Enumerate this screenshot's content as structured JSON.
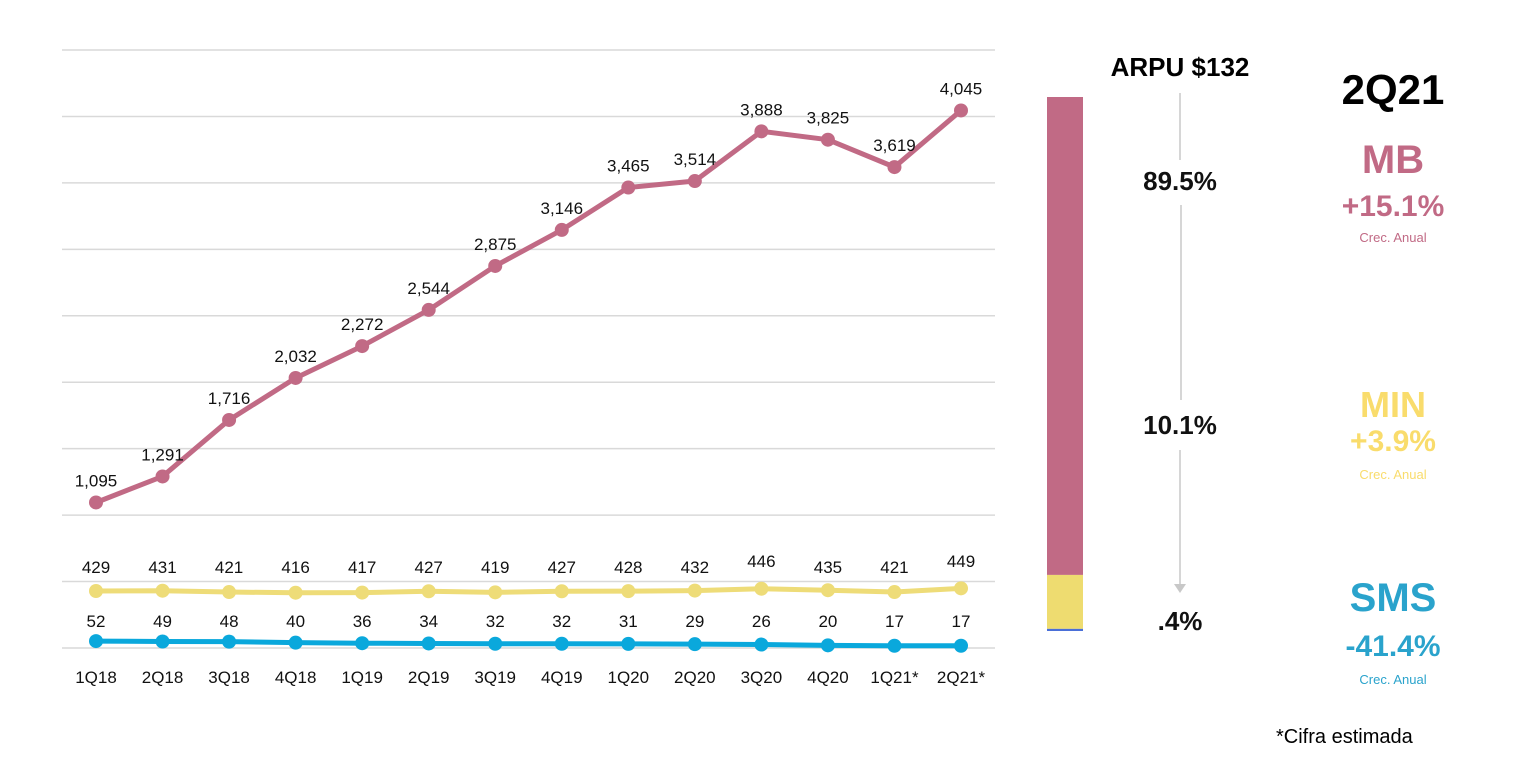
{
  "chart_data": {
    "type": "line",
    "categories": [
      "1Q18",
      "2Q18",
      "3Q18",
      "4Q18",
      "1Q19",
      "2Q19",
      "3Q19",
      "4Q19",
      "1Q20",
      "2Q20",
      "3Q20",
      "4Q20",
      "1Q21*",
      "2Q21*"
    ],
    "ylim": [
      0,
      4500
    ],
    "ytick_step": 500,
    "grid": true,
    "series": [
      {
        "name": "MB",
        "color": "#c16a85",
        "values": [
          1095,
          1291,
          1716,
          2032,
          2272,
          2544,
          2875,
          3146,
          3465,
          3514,
          3888,
          3825,
          3619,
          4045
        ]
      },
      {
        "name": "MIN",
        "color": "#eedc78",
        "values": [
          429,
          431,
          421,
          416,
          417,
          427,
          419,
          427,
          428,
          432,
          446,
          435,
          421,
          449
        ]
      },
      {
        "name": "SMS",
        "color": "#0aa8dc",
        "values": [
          52,
          49,
          48,
          40,
          36,
          34,
          32,
          32,
          31,
          29,
          26,
          20,
          17,
          17
        ]
      }
    ],
    "value_labels": {
      "MB": [
        "1,095",
        "1,291",
        "1,716",
        "2,032",
        "2,272",
        "2,544",
        "2,875",
        "3,146",
        "3,465",
        "3,514",
        "3,888",
        "3,825",
        "3,619",
        "4,045"
      ],
      "MIN": [
        "429",
        "431",
        "421",
        "416",
        "417",
        "427",
        "419",
        "427",
        "428",
        "432",
        "446",
        "435",
        "421",
        "449"
      ],
      "SMS": [
        "52",
        "49",
        "48",
        "40",
        "36",
        "34",
        "32",
        "32",
        "31",
        "29",
        "26",
        "20",
        "17",
        "17"
      ]
    },
    "stacked_bar": {
      "title": "ARPU $132",
      "segments": [
        {
          "name": "MB",
          "value": 89.5,
          "label": "89.5%",
          "color": "#c16a85"
        },
        {
          "name": "MIN",
          "value": 10.1,
          "label": "10.1%",
          "color": "#eedc70"
        },
        {
          "name": "SMS",
          "value": 0.4,
          "label": ".4%",
          "color": "#4a6fd8"
        }
      ]
    }
  },
  "summary": {
    "period": "2Q21",
    "items": [
      {
        "name": "MB",
        "growth": "+15.1%",
        "caption": "Crec. Anual",
        "color": "#c16a85"
      },
      {
        "name": "MIN",
        "growth": "+3.9%",
        "caption": "Crec. Anual",
        "color": "#f9dc6c"
      },
      {
        "name": "SMS",
        "growth": "-41.4%",
        "caption": "Crec. Anual",
        "color": "#2aa3cc"
      }
    ]
  },
  "footnote": "*Cifra estimada"
}
